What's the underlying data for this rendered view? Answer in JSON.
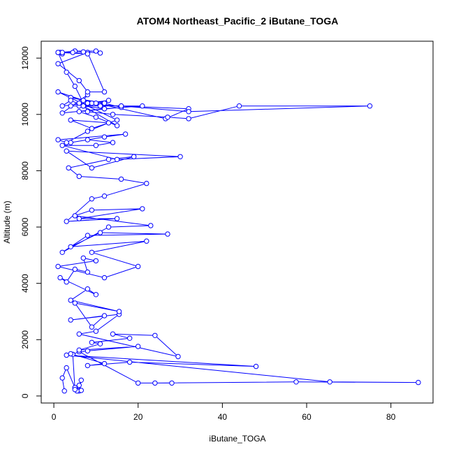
{
  "chart_data": {
    "type": "line",
    "title": "ATOM4 Northeast_Pacific_2 iButane_TOGA",
    "xlabel": "iButane_TOGA",
    "ylabel": "Altitude (m)",
    "xlim": [
      -3,
      90
    ],
    "ylim": [
      -250,
      12600
    ],
    "xticks": [
      0,
      20,
      40,
      60,
      80
    ],
    "yticks": [
      0,
      2000,
      4000,
      6000,
      8000,
      10000,
      12000
    ],
    "grid": false,
    "marker": "open-circle",
    "color": "#0000ff",
    "series": [
      {
        "x": [
          2.5,
          2,
          3,
          5,
          6,
          6.5,
          5.5,
          5,
          6,
          6.5,
          5,
          4.5,
          6,
          20,
          28,
          24,
          57.5,
          86.5,
          65.5,
          3,
          48,
          18,
          8,
          12,
          4,
          8,
          20,
          6,
          11,
          9,
          18,
          14,
          24,
          29.5,
          6,
          10,
          15.5,
          4,
          12,
          9,
          5,
          15.5,
          4,
          8,
          10,
          1.5,
          3,
          5,
          8,
          7,
          10,
          1,
          12,
          20,
          9,
          22,
          4,
          11,
          27,
          8,
          2,
          13,
          23,
          5,
          9,
          21,
          6,
          15,
          3,
          9,
          12,
          22,
          16,
          6,
          3.5,
          13,
          19,
          9,
          3,
          30,
          15,
          2,
          10,
          14,
          8,
          4,
          12,
          17,
          1,
          3,
          8,
          13,
          4,
          9,
          15,
          1,
          9,
          12,
          2,
          8,
          7,
          12,
          4,
          26.5,
          32,
          16,
          6,
          10,
          13,
          8,
          2,
          4,
          7,
          12,
          16,
          6,
          10,
          15,
          7,
          12,
          21,
          11,
          4,
          6,
          16,
          32,
          75,
          44,
          32,
          27,
          14,
          8,
          5,
          3,
          1,
          2,
          1.5,
          5,
          8,
          1,
          6,
          8,
          12,
          8,
          7,
          11,
          10,
          5,
          2,
          4.5,
          8,
          1
        ],
        "y": [
          180,
          640,
          1000,
          290,
          180,
          560,
          180,
          300,
          380,
          200,
          230,
          1480,
          1570,
          460,
          460,
          460,
          500,
          480,
          500,
          1450,
          1050,
          1200,
          1080,
          1150,
          1500,
          1600,
          1760,
          1630,
          1850,
          1900,
          2050,
          2200,
          2150,
          1400,
          2200,
          2300,
          2900,
          2700,
          2850,
          2450,
          3300,
          3000,
          3400,
          3800,
          3600,
          4200,
          4050,
          4500,
          4400,
          4900,
          4800,
          4600,
          4200,
          4600,
          5100,
          5500,
          5300,
          5800,
          5750,
          5700,
          5100,
          6000,
          6050,
          6400,
          6600,
          6650,
          6300,
          6300,
          6200,
          7000,
          7100,
          7550,
          7700,
          7800,
          8100,
          8400,
          8500,
          8100,
          8700,
          8500,
          8400,
          8900,
          8900,
          9000,
          9100,
          9000,
          9200,
          9300,
          9100,
          9000,
          9400,
          9700,
          9800,
          9500,
          9800,
          10800,
          10400,
          10200,
          10050,
          10700,
          10500,
          10400,
          10600,
          9850,
          10200,
          10300,
          10300,
          10400,
          10500,
          10400,
          10300,
          10500,
          10300,
          10400,
          10250,
          10100,
          9900,
          9600,
          10300,
          10200,
          10300,
          10300,
          10300,
          10400,
          10300,
          10100,
          10300,
          10300,
          9850,
          9900,
          10000,
          10100,
          11000,
          11500,
          12200,
          12150,
          12200,
          12250,
          12200,
          11800,
          11200,
          10800,
          10800,
          12200,
          12220,
          12180,
          12250,
          12250,
          12200,
          12200,
          12150,
          12200
        ]
      }
    ]
  }
}
